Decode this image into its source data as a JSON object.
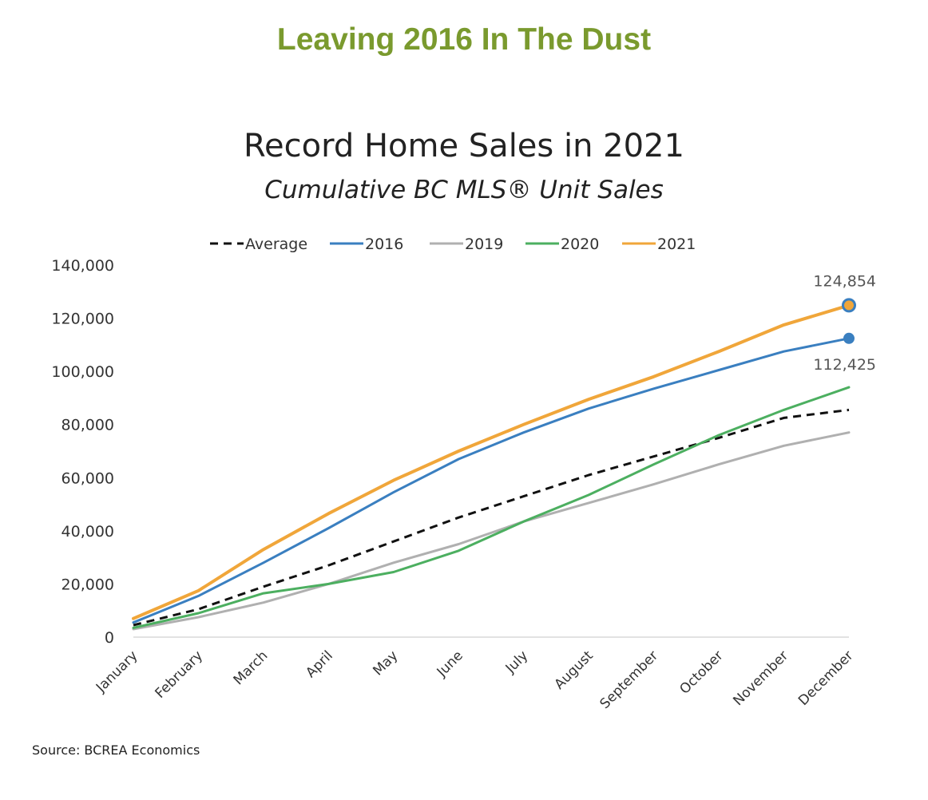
{
  "headline": "Leaving 2016 In The Dust",
  "source": "Source: BCREA Economics",
  "colors": {
    "headline": "#7a9a2e",
    "Average": "#111111",
    "2016": "#3a7fc0",
    "2019": "#b0b0b0",
    "2020": "#4caf60",
    "2021": "#f0a63a"
  },
  "chart_data": {
    "type": "line",
    "title": "Record Home Sales in 2021",
    "subtitle": "Cumulative BC MLS® Unit Sales",
    "categories": [
      "January",
      "February",
      "March",
      "April",
      "May",
      "June",
      "July",
      "August",
      "September",
      "October",
      "November",
      "December"
    ],
    "ylim": [
      0,
      140000
    ],
    "yticks": [
      "0",
      "20,000",
      "40,000",
      "60,000",
      "80,000",
      "100,000",
      "120,000",
      "140,000"
    ],
    "ytick_values": [
      0,
      20000,
      40000,
      60000,
      80000,
      100000,
      120000,
      140000
    ],
    "grid": false,
    "legend": "top",
    "series": [
      {
        "name": "Average",
        "style": "dashed",
        "values": [
          4500,
          10500,
          19000,
          27000,
          36000,
          45000,
          53000,
          61000,
          68000,
          75000,
          82500,
          85500
        ]
      },
      {
        "name": "2016",
        "style": "solid",
        "values": [
          5500,
          15500,
          28000,
          41000,
          54500,
          67000,
          77000,
          86000,
          93500,
          100500,
          107500,
          112425
        ]
      },
      {
        "name": "2019",
        "style": "solid",
        "values": [
          3000,
          7500,
          13000,
          20000,
          28000,
          35000,
          43500,
          50500,
          57500,
          65000,
          72000,
          77000
        ]
      },
      {
        "name": "2020",
        "style": "solid",
        "values": [
          3500,
          9000,
          16500,
          20000,
          24500,
          32500,
          43500,
          53500,
          65000,
          76000,
          85500,
          94000
        ]
      },
      {
        "name": "2021",
        "style": "solid",
        "values": [
          7000,
          17500,
          33000,
          46500,
          59000,
          70000,
          80000,
          89500,
          98000,
          107500,
          117500,
          124854
        ]
      }
    ],
    "annotations": [
      {
        "series": "2021",
        "category": "December",
        "text": "124,854"
      },
      {
        "series": "2016",
        "category": "December",
        "text": "112,425"
      }
    ]
  }
}
